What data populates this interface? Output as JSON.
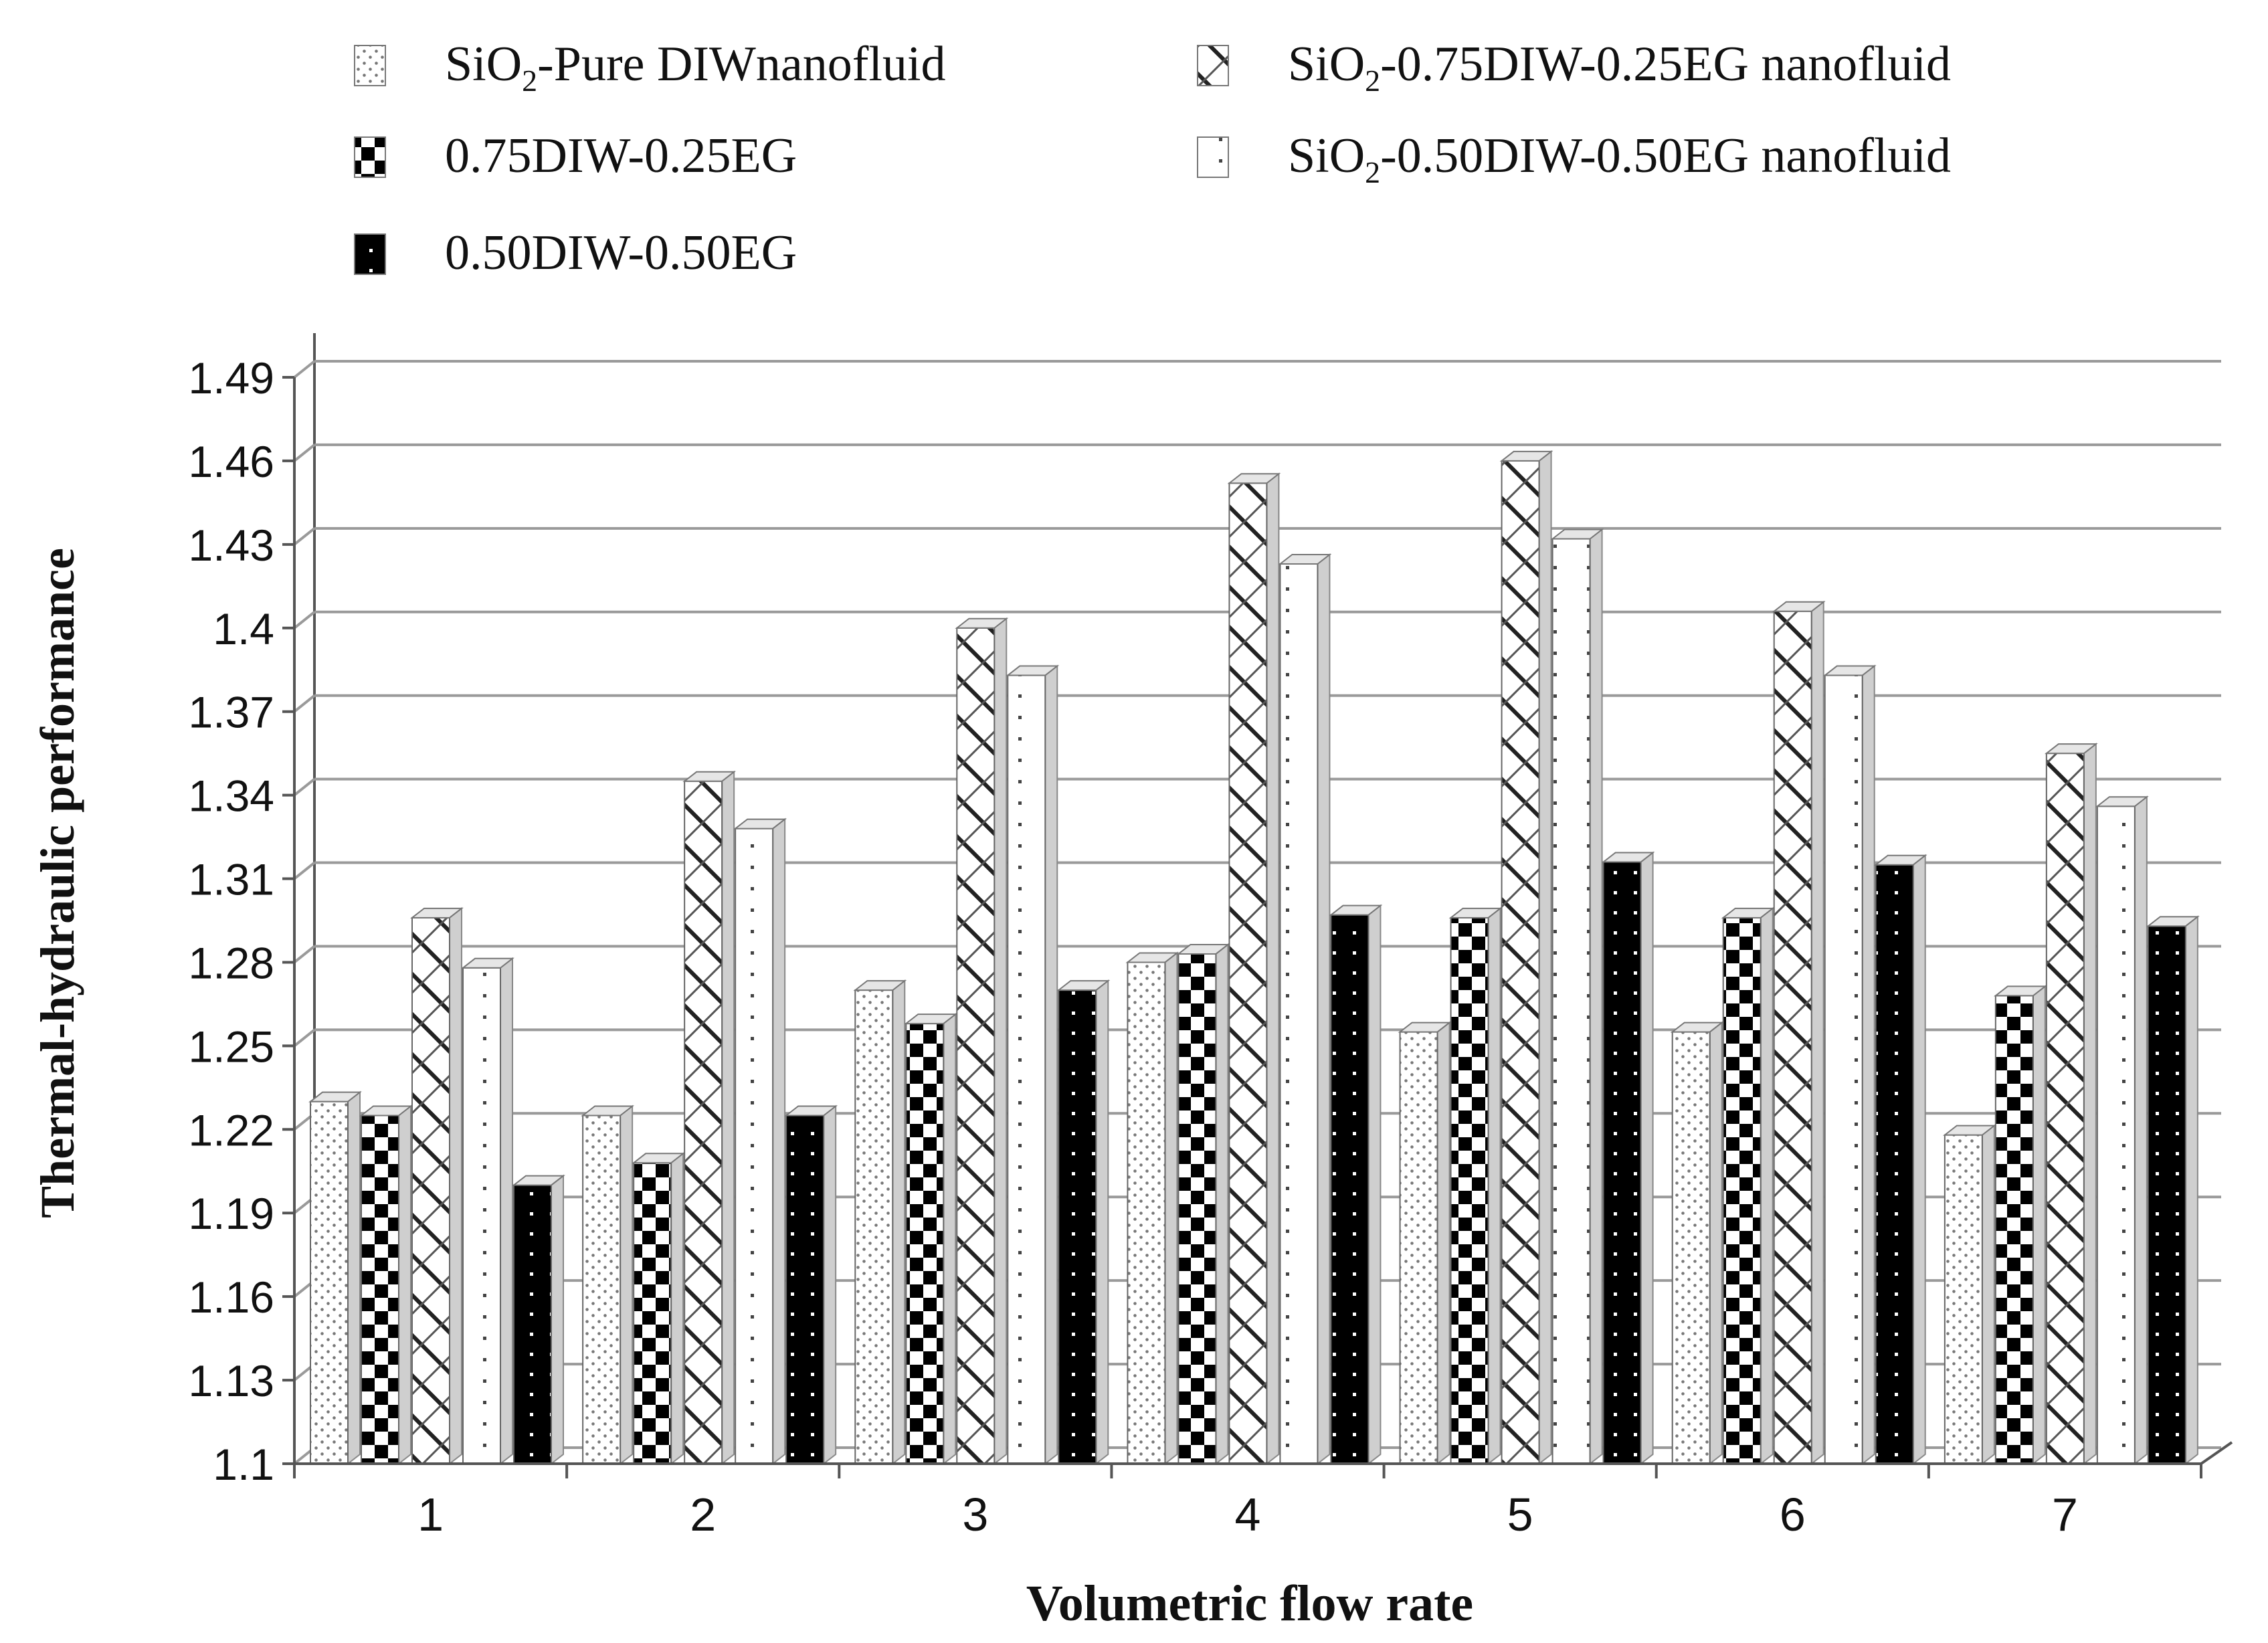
{
  "chart_data": {
    "type": "bar",
    "title": "",
    "xlabel": "Volumetric flow rate",
    "ylabel": "Thermal-hydraulic performance",
    "categories": [
      "1",
      "2",
      "3",
      "4",
      "5",
      "6",
      "7"
    ],
    "ylim": [
      1.1,
      1.49
    ],
    "yticks": [
      "1.1",
      "1.13",
      "1.16",
      "1.19",
      "1.22",
      "1.25",
      "1.28",
      "1.31",
      "1.34",
      "1.37",
      "1.4",
      "1.43",
      "1.46",
      "1.49"
    ],
    "grid": true,
    "legend_position": "top",
    "series": [
      {
        "name": "SiO2-Pure DIW nanofluid",
        "label_main": "SiO",
        "label_sub": "2",
        "label_rest": "-Pure DIWnanofluid",
        "pattern": "dots",
        "values": [
          1.23,
          1.225,
          1.27,
          1.28,
          1.255,
          1.255,
          1.218
        ]
      },
      {
        "name": "0.75DIW-0.25EG",
        "label_main": "0.75DIW-0.25EG",
        "label_sub": "",
        "label_rest": "",
        "pattern": "checker",
        "values": [
          1.225,
          1.208,
          1.258,
          1.283,
          1.296,
          1.296,
          1.268
        ]
      },
      {
        "name": "SiO2-0.75DIW-0.25EG nanofluid",
        "label_main": "SiO",
        "label_sub": "2",
        "label_rest": "-0.75DIW-0.25EG nanofluid",
        "pattern": "diag",
        "values": [
          1.296,
          1.345,
          1.4,
          1.452,
          1.46,
          1.406,
          1.355
        ]
      },
      {
        "name": "SiO2-0.50DIW-0.50EG nanofluid",
        "label_main": "SiO",
        "label_sub": "2",
        "label_rest": "-0.50DIW-0.50EG nanofluid",
        "pattern": "sparse",
        "values": [
          1.278,
          1.328,
          1.383,
          1.423,
          1.432,
          1.383,
          1.336
        ]
      },
      {
        "name": "0.50DIW-0.50EG",
        "label_main": "0.50DIW-0.50EG",
        "label_sub": "",
        "label_rest": "",
        "pattern": "blackdots",
        "values": [
          1.2,
          1.225,
          1.27,
          1.297,
          1.316,
          1.315,
          1.293
        ]
      }
    ]
  },
  "colors": {
    "grid": "#9a9a9a",
    "axis": "#555555",
    "text": "#111111",
    "bar_side": "#cfcfcf",
    "bar_top": "#e6e6e6"
  }
}
